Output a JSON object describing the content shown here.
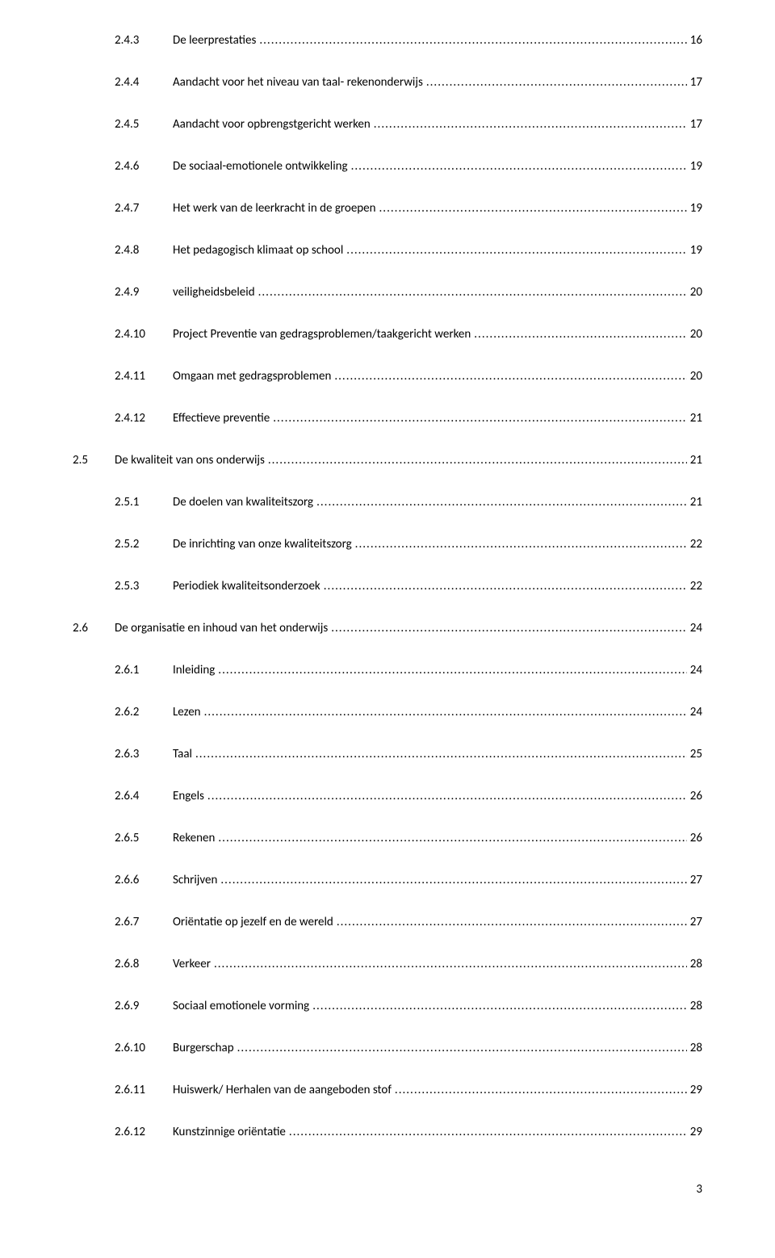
{
  "background_color": "#ffffff",
  "text_color": "#000000",
  "font_family": "Calibri",
  "font_size_pt": 11,
  "page_number": "3",
  "entries": [
    {
      "level": 3,
      "num": "2.4.3",
      "title": "De leerprestaties",
      "page": "16"
    },
    {
      "level": 3,
      "num": "2.4.4",
      "title": "Aandacht voor het niveau van taal- rekenonderwijs",
      "page": "17"
    },
    {
      "level": 3,
      "num": "2.4.5",
      "title": "Aandacht voor opbrengstgericht werken",
      "page": "17"
    },
    {
      "level": 3,
      "num": "2.4.6",
      "title": "De sociaal-emotionele ontwikkeling",
      "page": "19"
    },
    {
      "level": 3,
      "num": "2.4.7",
      "title": "Het werk van de leerkracht in de groepen",
      "page": "19"
    },
    {
      "level": 3,
      "num": "2.4.8",
      "title": "Het pedagogisch klimaat op school",
      "page": "19"
    },
    {
      "level": 3,
      "num": "2.4.9",
      "title": "veiligheidsbeleid",
      "page": "20"
    },
    {
      "level": 3,
      "num": "2.4.10",
      "title": "Project Preventie van gedragsproblemen/taakgericht werken",
      "page": "20"
    },
    {
      "level": 3,
      "num": "2.4.11",
      "title": "Omgaan met gedragsproblemen",
      "page": "20"
    },
    {
      "level": 3,
      "num": "2.4.12",
      "title": "Effectieve preventie",
      "page": "21"
    },
    {
      "level": 2,
      "num": "2.5",
      "title": "De kwaliteit van ons onderwijs",
      "page": "21"
    },
    {
      "level": 3,
      "num": "2.5.1",
      "title": "De doelen van kwaliteitszorg",
      "page": "21"
    },
    {
      "level": 3,
      "num": "2.5.2",
      "title": "De inrichting van onze kwaliteitszorg",
      "page": "22"
    },
    {
      "level": 3,
      "num": "2.5.3",
      "title": "Periodiek kwaliteitsonderzoek",
      "page": "22"
    },
    {
      "level": 2,
      "num": "2.6",
      "title": "De organisatie en inhoud van het onderwijs",
      "page": "24"
    },
    {
      "level": 3,
      "num": "2.6.1",
      "title": "Inleiding",
      "page": "24"
    },
    {
      "level": 3,
      "num": "2.6.2",
      "title": "Lezen",
      "page": "24"
    },
    {
      "level": 3,
      "num": "2.6.3",
      "title": "Taal",
      "page": "25"
    },
    {
      "level": 3,
      "num": "2.6.4",
      "title": "Engels",
      "page": "26"
    },
    {
      "level": 3,
      "num": "2.6.5",
      "title": "Rekenen",
      "page": "26"
    },
    {
      "level": 3,
      "num": "2.6.6",
      "title": "Schrijven",
      "page": "27"
    },
    {
      "level": 3,
      "num": "2.6.7",
      "title": "Oriëntatie op jezelf en de wereld",
      "page": "27"
    },
    {
      "level": 3,
      "num": "2.6.8",
      "title": "Verkeer",
      "page": "28"
    },
    {
      "level": 3,
      "num": "2.6.9",
      "title": "Sociaal emotionele vorming",
      "page": "28"
    },
    {
      "level": 3,
      "num": "2.6.10",
      "title": "Burgerschap",
      "page": "28"
    },
    {
      "level": 3,
      "num": "2.6.11",
      "title": "Huiswerk/ Herhalen van de aangeboden stof",
      "page": "29"
    },
    {
      "level": 3,
      "num": "2.6.12",
      "title": "Kunstzinnige oriëntatie",
      "page": "29"
    }
  ]
}
